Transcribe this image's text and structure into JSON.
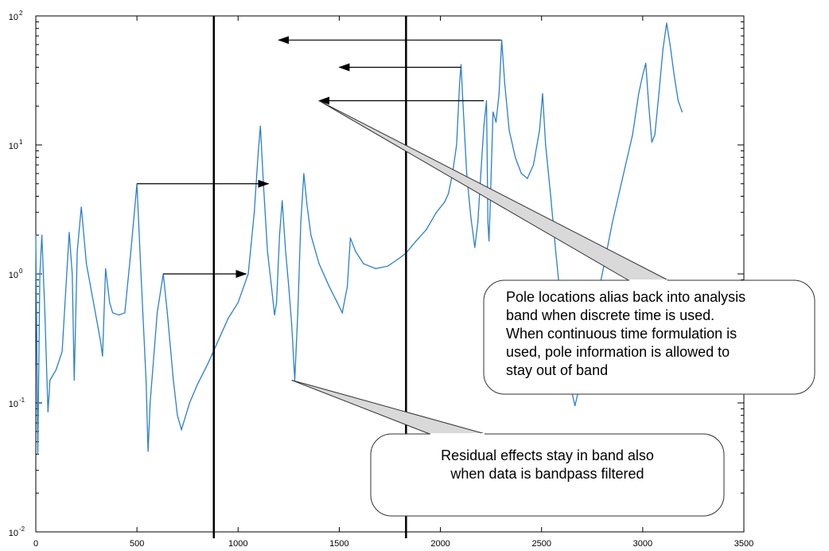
{
  "chart_data": {
    "type": "line",
    "title": "",
    "xlabel": "",
    "ylabel": "",
    "xlim": [
      0,
      3500
    ],
    "ylim": [
      0.01,
      100
    ],
    "yscale": "log",
    "grid": false,
    "line_color": "#2a7fcf",
    "x_ticks": [
      {
        "value": 0,
        "label": "0"
      },
      {
        "value": 500,
        "label": "500"
      },
      {
        "value": 1000,
        "label": "1000"
      },
      {
        "value": 1500,
        "label": "1500"
      },
      {
        "value": 2000,
        "label": "2000"
      },
      {
        "value": 2500,
        "label": "2500"
      },
      {
        "value": 3000,
        "label": "3000"
      },
      {
        "value": 3500,
        "label": "3500"
      }
    ],
    "y_ticks": [
      {
        "value": 0.01,
        "base": "10",
        "exp": "-2"
      },
      {
        "value": 0.1,
        "base": "10",
        "exp": "-1"
      },
      {
        "value": 1,
        "base": "10",
        "exp": "0"
      },
      {
        "value": 10,
        "base": "10",
        "exp": "1"
      },
      {
        "value": 100,
        "base": "10",
        "exp": "2"
      }
    ],
    "band_lines": [
      {
        "x": 880
      },
      {
        "x": 1830
      }
    ],
    "series": [
      {
        "points": [
          [
            0,
            2.0
          ],
          [
            10,
            0.04
          ],
          [
            20,
            1.0
          ],
          [
            30,
            2.0
          ],
          [
            45,
            0.5
          ],
          [
            60,
            0.085
          ],
          [
            70,
            0.15
          ],
          [
            100,
            0.18
          ],
          [
            130,
            0.25
          ],
          [
            165,
            2.1
          ],
          [
            180,
            1.0
          ],
          [
            190,
            0.15
          ],
          [
            205,
            1.5
          ],
          [
            225,
            3.3
          ],
          [
            250,
            1.2
          ],
          [
            285,
            0.6
          ],
          [
            320,
            0.3
          ],
          [
            330,
            0.23
          ],
          [
            345,
            1.1
          ],
          [
            365,
            0.6
          ],
          [
            380,
            0.5
          ],
          [
            410,
            0.48
          ],
          [
            440,
            0.5
          ],
          [
            470,
            1.5
          ],
          [
            500,
            5.0
          ],
          [
            520,
            1.0
          ],
          [
            545,
            0.15
          ],
          [
            555,
            0.042
          ],
          [
            565,
            0.1
          ],
          [
            600,
            0.5
          ],
          [
            630,
            1.0
          ],
          [
            650,
            0.5
          ],
          [
            680,
            0.15
          ],
          [
            700,
            0.08
          ],
          [
            720,
            0.062
          ],
          [
            760,
            0.1
          ],
          [
            800,
            0.14
          ],
          [
            850,
            0.2
          ],
          [
            900,
            0.3
          ],
          [
            950,
            0.45
          ],
          [
            1000,
            0.6
          ],
          [
            1050,
            1.0
          ],
          [
            1080,
            3.0
          ],
          [
            1100,
            9.0
          ],
          [
            1110,
            14.0
          ],
          [
            1125,
            5.0
          ],
          [
            1145,
            1.5
          ],
          [
            1165,
            0.8
          ],
          [
            1180,
            0.48
          ],
          [
            1190,
            0.6
          ],
          [
            1205,
            2.0
          ],
          [
            1218,
            3.7
          ],
          [
            1235,
            1.5
          ],
          [
            1250,
            0.8
          ],
          [
            1265,
            0.4
          ],
          [
            1280,
            0.15
          ],
          [
            1295,
            0.5
          ],
          [
            1310,
            2.5
          ],
          [
            1325,
            6.0
          ],
          [
            1340,
            3.5
          ],
          [
            1360,
            2.0
          ],
          [
            1400,
            1.2
          ],
          [
            1450,
            0.8
          ],
          [
            1490,
            0.6
          ],
          [
            1515,
            0.5
          ],
          [
            1540,
            0.8
          ],
          [
            1555,
            1.9
          ],
          [
            1580,
            1.5
          ],
          [
            1620,
            1.2
          ],
          [
            1680,
            1.1
          ],
          [
            1740,
            1.15
          ],
          [
            1790,
            1.3
          ],
          [
            1830,
            1.45
          ],
          [
            1880,
            1.8
          ],
          [
            1930,
            2.2
          ],
          [
            1980,
            3.0
          ],
          [
            2020,
            3.6
          ],
          [
            2040,
            4.2
          ],
          [
            2060,
            6.0
          ],
          [
            2080,
            10.0
          ],
          [
            2095,
            30.0
          ],
          [
            2102,
            42.0
          ],
          [
            2112,
            20.0
          ],
          [
            2130,
            6.0
          ],
          [
            2150,
            2.8
          ],
          [
            2170,
            1.6
          ],
          [
            2185,
            2.5
          ],
          [
            2200,
            6.0
          ],
          [
            2215,
            14.0
          ],
          [
            2228,
            22.0
          ],
          [
            2235,
            2.5
          ],
          [
            2240,
            1.8
          ],
          [
            2245,
            3.0
          ],
          [
            2260,
            18.0
          ],
          [
            2275,
            15.0
          ],
          [
            2290,
            25.0
          ],
          [
            2303,
            65.0
          ],
          [
            2318,
            30.0
          ],
          [
            2340,
            13.0
          ],
          [
            2370,
            8.0
          ],
          [
            2400,
            6.0
          ],
          [
            2430,
            5.5
          ],
          [
            2460,
            7.0
          ],
          [
            2490,
            13.0
          ],
          [
            2505,
            25.0
          ],
          [
            2520,
            10.0
          ],
          [
            2545,
            4.0
          ],
          [
            2570,
            1.5
          ],
          [
            2600,
            0.5
          ],
          [
            2630,
            0.2
          ],
          [
            2650,
            0.12
          ],
          [
            2665,
            0.095
          ],
          [
            2690,
            0.14
          ],
          [
            2720,
            0.2
          ],
          [
            2760,
            0.5
          ],
          [
            2800,
            1.0
          ],
          [
            2850,
            2.5
          ],
          [
            2900,
            5.5
          ],
          [
            2950,
            12.0
          ],
          [
            2980,
            25.0
          ],
          [
            3000,
            35.0
          ],
          [
            3015,
            43.0
          ],
          [
            3030,
            20.0
          ],
          [
            3045,
            10.5
          ],
          [
            3060,
            12.0
          ],
          [
            3080,
            25.0
          ],
          [
            3100,
            55.0
          ],
          [
            3118,
            88.0
          ],
          [
            3135,
            60.0
          ],
          [
            3155,
            35.0
          ],
          [
            3175,
            22.0
          ],
          [
            3195,
            18.0
          ]
        ]
      }
    ],
    "arrows": [
      {
        "from": [
          2300,
          65.0
        ],
        "to": [
          1200,
          65.0
        ]
      },
      {
        "from": [
          2100,
          40.0
        ],
        "to": [
          1500,
          40.0
        ]
      },
      {
        "from": [
          2215,
          22.0
        ],
        "to": [
          1400,
          22.0
        ]
      },
      {
        "from": [
          500,
          5.0
        ],
        "to": [
          1150,
          5.0
        ]
      },
      {
        "from": [
          630,
          1.0
        ],
        "to": [
          1040,
          1.0
        ]
      }
    ],
    "annotations": [
      {
        "text_lines": [
          "Pole locations alias back into analysis",
          "band when discrete time is used.",
          "When continuous time formulation is",
          "used, pole information is allowed to",
          "stay out of band"
        ],
        "pointer_to": [
          1400,
          22.0
        ]
      },
      {
        "text_lines": [
          "Residual effects stay in band also",
          "when data is bandpass filtered"
        ],
        "pointer_to": [
          1265,
          0.15
        ]
      }
    ]
  }
}
